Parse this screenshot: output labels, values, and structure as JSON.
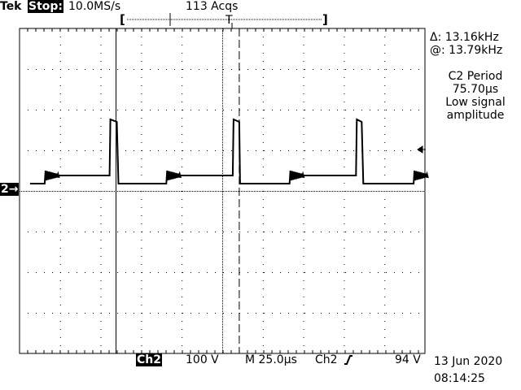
{
  "header": {
    "brand": "Tek",
    "state": "Stop:",
    "sample_rate": "10.0MS/s",
    "acquisitions": "113 Acqs"
  },
  "measurements": {
    "delta": "Δ: 13.16kHz",
    "at": "@: 13.79kHz",
    "meas_title": "C2 Period",
    "meas_value": "75.70µs",
    "warning_line1": "Low signal",
    "warning_line2": "amplitude"
  },
  "footer": {
    "channel": "Ch2",
    "volts_per_div": "100 V",
    "timebase": "M 25.0µs",
    "trigger_source": "Ch2",
    "trigger_slope_icon": "rising-edge",
    "trigger_level": "94 V",
    "date": "13 Jun 2020",
    "time": "08:14:25"
  },
  "channel_marker": "2",
  "colors": {
    "trace": "#000000",
    "background": "#ffffff"
  },
  "chart_data": {
    "type": "line",
    "xlabel": "",
    "ylabel": "",
    "x_unit": "µs",
    "y_unit": "V",
    "xlim": [
      0,
      250
    ],
    "ylim": [
      -400,
      400
    ],
    "grid": true,
    "volts_per_div": 100,
    "time_per_div": 25,
    "cursors_us": [
      59.5,
      135.5
    ],
    "trigger_level_v": 94,
    "series": [
      {
        "x": [
          6.5,
          15.5,
          16,
          55.5,
          56,
          60,
          61,
          90.5,
          91,
          131.5,
          132,
          135.5,
          136,
          166.5,
          167,
          207.5,
          208,
          211,
          212,
          243,
          243.5,
          249
        ],
        "y": [
          18,
          18,
          38,
          38,
          176,
          170,
          18,
          18,
          38,
          38,
          176,
          170,
          18,
          18,
          38,
          38,
          176,
          170,
          18,
          18,
          38,
          38
        ],
        "ringing_after_index": [
          1,
          7,
          13,
          19
        ]
      }
    ]
  }
}
